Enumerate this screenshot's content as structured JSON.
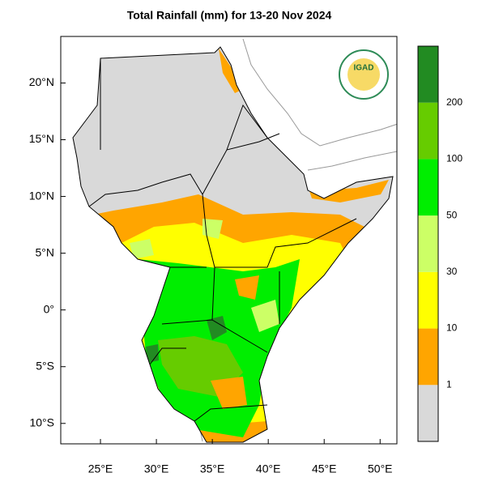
{
  "map": {
    "title": "Total Rainfall (mm) for 13-20 Nov 2024",
    "logo_text": "IGAD",
    "xlim": [
      21.45,
      51.5
    ],
    "ylim": [
      -11.8,
      24.1
    ],
    "xticks": [
      {
        "value": 25,
        "label": "25°E"
      },
      {
        "value": 30,
        "label": "30°E"
      },
      {
        "value": 35,
        "label": "35°E"
      },
      {
        "value": 40,
        "label": "40°E"
      },
      {
        "value": 45,
        "label": "45°E"
      },
      {
        "value": 50,
        "label": "50°E"
      }
    ],
    "yticks": [
      {
        "value": 20,
        "label": "20°N"
      },
      {
        "value": 15,
        "label": "15°N"
      },
      {
        "value": 10,
        "label": "10°N"
      },
      {
        "value": 5,
        "label": "5°N"
      },
      {
        "value": 0,
        "label": "0°"
      },
      {
        "value": -5,
        "label": "5°S"
      },
      {
        "value": -10,
        "label": "10°S"
      }
    ],
    "legend": {
      "levels": [
        1,
        10,
        30,
        50,
        100,
        200
      ],
      "colors": [
        "#d9d9d9",
        "#ffa500",
        "#ffff00",
        "#ccff66",
        "#00ee00",
        "#66cc00",
        "#228b22"
      ]
    }
  }
}
